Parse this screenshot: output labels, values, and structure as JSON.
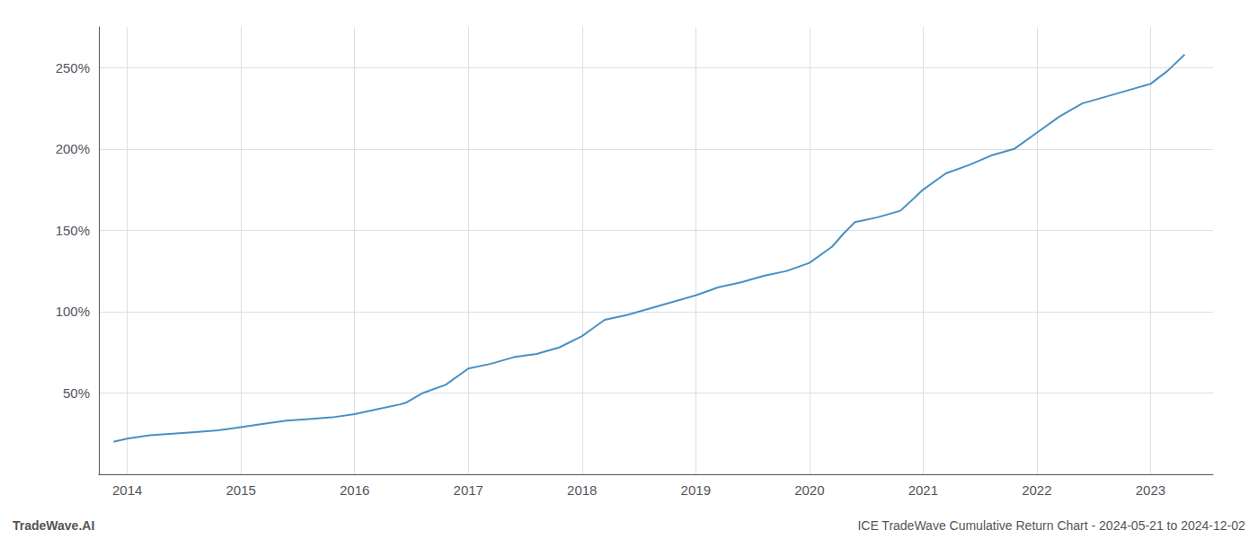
{
  "chart_data": {
    "type": "line",
    "annotations": [
      "TradeWave.AI",
      "ICE TradeWave Cumulative Return Chart - 2024-05-21 to 2024-12-02"
    ],
    "color": "#4a90c4",
    "x": [
      2013.88,
      2014.0,
      2014.2,
      2014.4,
      2014.6,
      2014.8,
      2015.0,
      2015.2,
      2015.4,
      2015.6,
      2015.8,
      2016.0,
      2016.2,
      2016.4,
      2016.45,
      2016.6,
      2016.8,
      2017.0,
      2017.2,
      2017.4,
      2017.6,
      2017.8,
      2018.0,
      2018.1,
      2018.2,
      2018.4,
      2018.6,
      2018.8,
      2019.0,
      2019.2,
      2019.4,
      2019.6,
      2019.8,
      2020.0,
      2020.2,
      2020.3,
      2020.4,
      2020.6,
      2020.8,
      2021.0,
      2021.2,
      2021.4,
      2021.6,
      2021.8,
      2022.0,
      2022.2,
      2022.4,
      2022.6,
      2022.8,
      2023.0,
      2023.15,
      2023.3
    ],
    "values": [
      20,
      22,
      24,
      25,
      26,
      27,
      29,
      31,
      33,
      34,
      35,
      37,
      40,
      43,
      44,
      50,
      55,
      65,
      68,
      72,
      74,
      78,
      85,
      90,
      95,
      98,
      102,
      106,
      110,
      115,
      118,
      122,
      125,
      130,
      140,
      148,
      155,
      158,
      162,
      175,
      185,
      190,
      196,
      200,
      210,
      220,
      228,
      232,
      236,
      240,
      248,
      258
    ],
    "xlim": [
      2013.75,
      2023.55
    ],
    "xticks": [
      2014,
      2015,
      2016,
      2017,
      2018,
      2019,
      2020,
      2021,
      2022,
      2023
    ],
    "ylim": [
      0,
      275
    ],
    "yticks": [
      {
        "value": 50,
        "label": "50%"
      },
      {
        "value": 100,
        "label": "100%"
      },
      {
        "value": 150,
        "label": "150%"
      },
      {
        "value": 200,
        "label": "200%"
      },
      {
        "value": 250,
        "label": "250%"
      }
    ],
    "grid": true
  }
}
